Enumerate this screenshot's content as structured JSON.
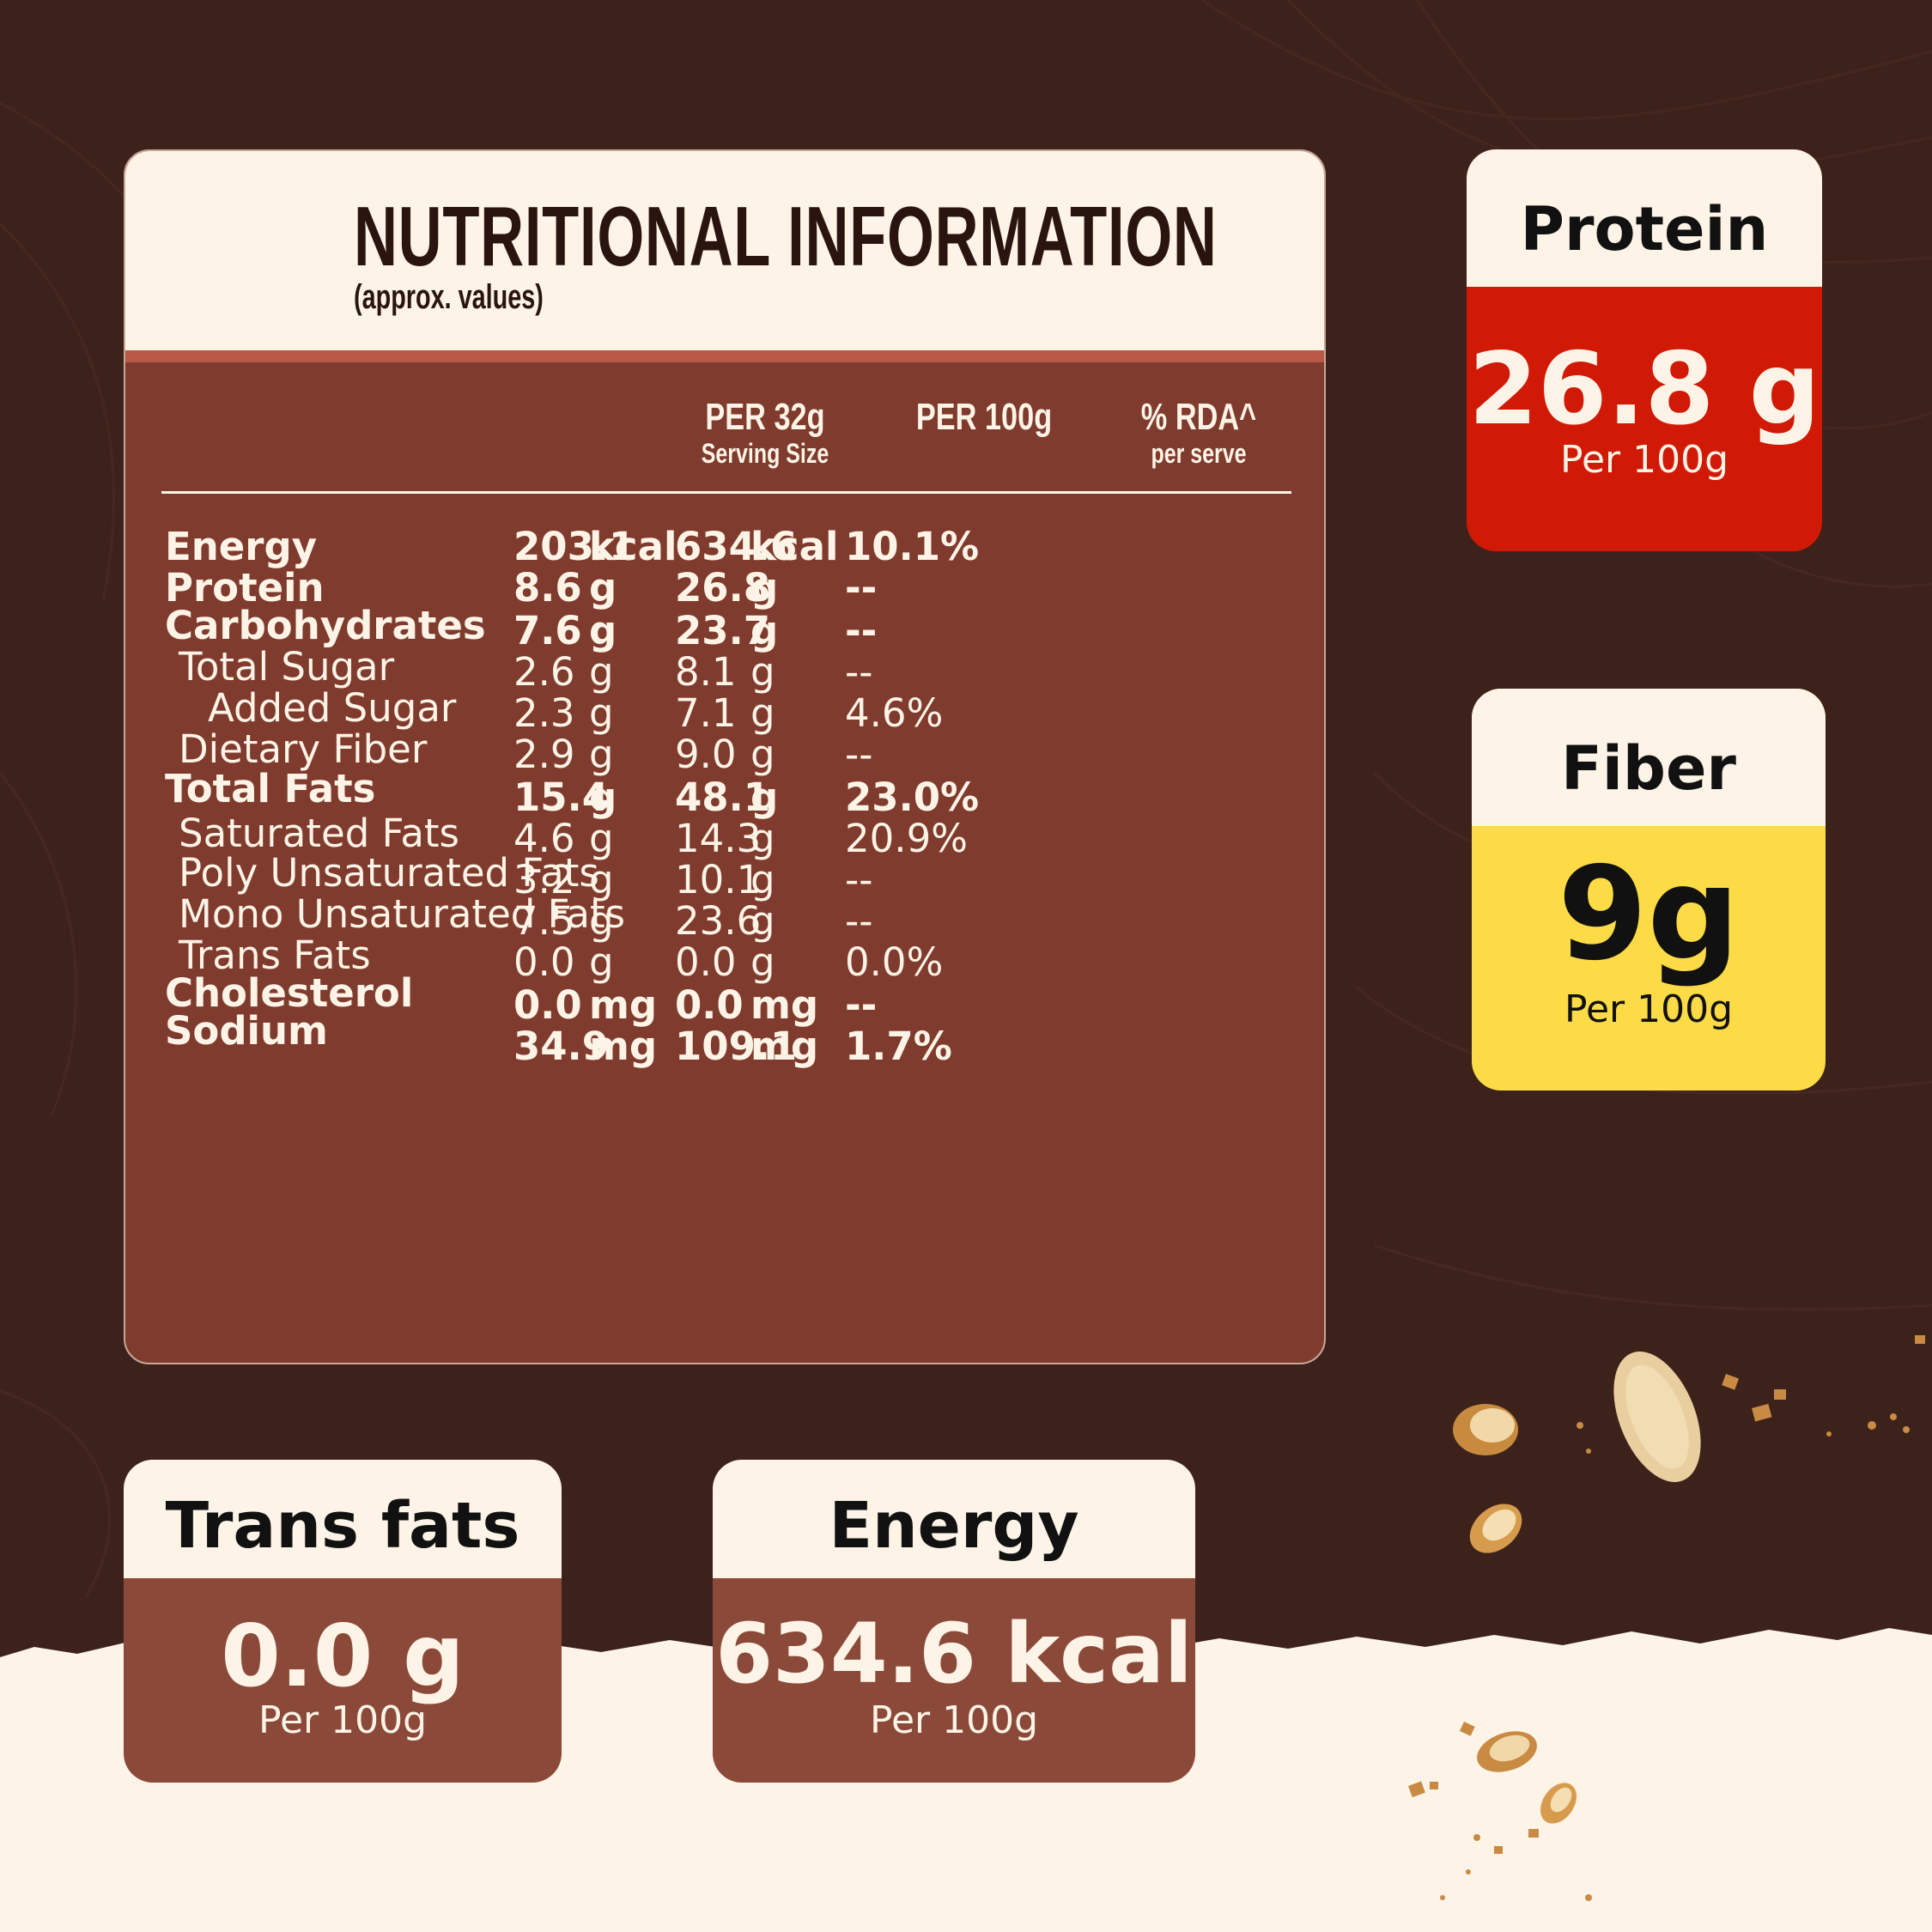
{
  "colors": {
    "background": "#3d221c",
    "panel": "#7f3b2d",
    "cream": "#fdf3e6",
    "protein_red": "#d11a05",
    "fiber_yellow": "#fcdb46",
    "brown_card": "#8b4a39"
  },
  "panel": {
    "title": "NUTRITIONAL INFORMATION",
    "subtitle": "(approx. values)",
    "columns": {
      "per_serving": "PER 32g",
      "per_serving_note": "Serving Size",
      "per_100g": "PER 100g",
      "rda": "% RDA^",
      "rda_note": "per serve"
    },
    "rows": [
      {
        "name": "Energy",
        "s_val": "203.1",
        "s_unit": "kcal",
        "h_val": "634.6",
        "h_unit": "kcal",
        "rda": "10.1%"
      },
      {
        "name": "Protein",
        "s_val": "8.6",
        "s_unit": "g",
        "h_val": "26.8",
        "h_unit": "g",
        "rda": "--"
      },
      {
        "name": "Carbohydrates",
        "s_val": "7.6",
        "s_unit": "g",
        "h_val": "23.7",
        "h_unit": "g",
        "rda": "--"
      },
      {
        "name": "Total Sugar",
        "s_val": "2.6",
        "s_unit": "g",
        "h_val": "8.1",
        "h_unit": "g",
        "rda": "--"
      },
      {
        "name": "Added Sugar",
        "s_val": "2.3",
        "s_unit": "g",
        "h_val": "7.1",
        "h_unit": "g",
        "rda": "4.6%"
      },
      {
        "name": "Dietary Fiber",
        "s_val": "2.9",
        "s_unit": "g",
        "h_val": "9.0",
        "h_unit": "g",
        "rda": "--"
      },
      {
        "name": "Total Fats",
        "s_val": "15.4",
        "s_unit": "g",
        "h_val": "48.1",
        "h_unit": "g",
        "rda": "23.0%"
      },
      {
        "name": "Saturated Fats",
        "s_val": "4.6",
        "s_unit": "g",
        "h_val": "14.3",
        "h_unit": "g",
        "rda": "20.9%"
      },
      {
        "name": "Poly Unsaturated Fats",
        "s_val": "3.2",
        "s_unit": "g",
        "h_val": "10.1",
        "h_unit": "g",
        "rda": "--"
      },
      {
        "name": "Mono Unsaturated Fats",
        "s_val": "7.5",
        "s_unit": "g",
        "h_val": "23.6",
        "h_unit": "g",
        "rda": "--"
      },
      {
        "name": "Trans Fats",
        "s_val": "0.0",
        "s_unit": "g",
        "h_val": "0.0",
        "h_unit": "g",
        "rda": "0.0%"
      },
      {
        "name": "Cholesterol",
        "s_val": "0.0",
        "s_unit": "mg",
        "h_val": "0.0",
        "h_unit": "mg",
        "rda": "--"
      },
      {
        "name": "Sodium",
        "s_val": "34.9",
        "s_unit": "mg",
        "h_val": "109.1",
        "h_unit": "mg",
        "rda": "1.7%"
      }
    ]
  },
  "cards": {
    "protein": {
      "label": "Protein",
      "value": "26.8 g",
      "sub": "Per 100g"
    },
    "fiber": {
      "label": "Fiber",
      "value": "9g",
      "sub": "Per 100g"
    },
    "trans_fats": {
      "label": "Trans fats",
      "value": "0.0 g",
      "sub": "Per 100g"
    },
    "energy": {
      "label": "Energy",
      "value": "634.6 kcal",
      "sub": "Per 100g"
    }
  }
}
